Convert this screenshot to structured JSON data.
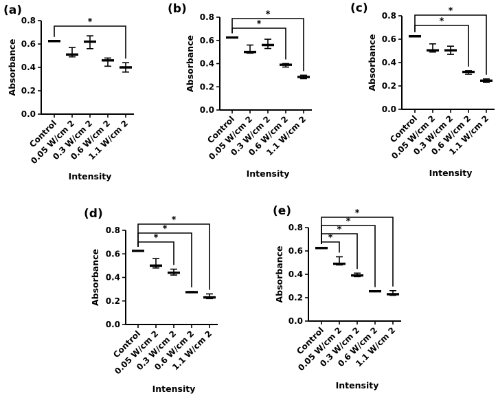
{
  "chart_data": [
    {
      "panel": "(a)",
      "type": "scatter",
      "categories": [
        "Control",
        "0.05 W/cm 2",
        "0.3 W/cm 2",
        "0.6 W/cm 2",
        "1.1 W/cm 2"
      ],
      "values": [
        0.625,
        0.51,
        0.62,
        0.46,
        0.4
      ],
      "error_low": [
        0.625,
        0.49,
        0.56,
        0.41,
        0.36
      ],
      "error_high": [
        0.625,
        0.57,
        0.67,
        0.48,
        0.44
      ],
      "ylabel": "Absorbance",
      "xlabel": "Intensity",
      "ylim": [
        0,
        0.8
      ],
      "yticks": [
        "0.0",
        "0.2",
        "0.4",
        "0.6",
        "0.8"
      ],
      "significance": [
        {
          "from": 0,
          "to": 4,
          "label": "*"
        }
      ]
    },
    {
      "panel": "(b)",
      "type": "scatter",
      "categories": [
        "Control",
        "0.05 W/cm 2",
        "0.3 W/cm 2",
        "0.6 W/cm 2",
        "1.1 W/cm 2"
      ],
      "values": [
        0.625,
        0.5,
        0.56,
        0.39,
        0.285
      ],
      "error_low": [
        0.625,
        0.49,
        0.53,
        0.37,
        0.27
      ],
      "error_high": [
        0.625,
        0.56,
        0.61,
        0.4,
        0.3
      ],
      "ylabel": "Absorbance",
      "xlabel": "Intensity",
      "ylim": [
        0,
        0.8
      ],
      "yticks": [
        "0.0",
        "0.2",
        "0.4",
        "0.6",
        "0.8"
      ],
      "significance": [
        {
          "from": 0,
          "to": 3,
          "label": "*"
        },
        {
          "from": 0,
          "to": 4,
          "label": "*"
        }
      ]
    },
    {
      "panel": "(c)",
      "type": "scatter",
      "categories": [
        "Control",
        "0.05 W/cm 2",
        "0.3 W/cm 2",
        "0.6 W/cm 2",
        "1.1 W/cm 2"
      ],
      "values": [
        0.625,
        0.505,
        0.505,
        0.32,
        0.245
      ],
      "error_low": [
        0.625,
        0.49,
        0.47,
        0.3,
        0.23
      ],
      "error_high": [
        0.625,
        0.56,
        0.54,
        0.33,
        0.26
      ],
      "ylabel": "Absorbance",
      "xlabel": "Intensity",
      "ylim": [
        0,
        0.8
      ],
      "yticks": [
        "0.0",
        "0.2",
        "0.4",
        "0.6",
        "0.8"
      ],
      "significance": [
        {
          "from": 0,
          "to": 3,
          "label": "*"
        },
        {
          "from": 0,
          "to": 4,
          "label": "*"
        }
      ]
    },
    {
      "panel": "(d)",
      "type": "scatter",
      "categories": [
        "Control",
        "0.05 W/cm 2",
        "0.3 W/cm 2",
        "0.6 W/cm 2",
        "1.1 W/cm 2"
      ],
      "values": [
        0.625,
        0.5,
        0.44,
        0.275,
        0.23
      ],
      "error_low": [
        0.625,
        0.48,
        0.42,
        0.27,
        0.22
      ],
      "error_high": [
        0.625,
        0.56,
        0.47,
        0.28,
        0.26
      ],
      "ylabel": "Absorbance",
      "xlabel": "Intensity",
      "ylim": [
        0,
        0.8
      ],
      "yticks": [
        "0.0",
        "0.2",
        "0.4",
        "0.6",
        "0.8"
      ],
      "significance": [
        {
          "from": 0,
          "to": 2,
          "label": "*"
        },
        {
          "from": 0,
          "to": 3,
          "label": "*"
        },
        {
          "from": 0,
          "to": 4,
          "label": "*"
        }
      ]
    },
    {
      "panel": "(e)",
      "type": "scatter",
      "categories": [
        "Control",
        "0.05 W/cm 2",
        "0.3 W/cm 2",
        "0.6 W/cm 2",
        "1.1 W/cm 2"
      ],
      "values": [
        0.625,
        0.49,
        0.39,
        0.255,
        0.23
      ],
      "error_low": [
        0.625,
        0.48,
        0.38,
        0.255,
        0.22
      ],
      "error_high": [
        0.625,
        0.55,
        0.41,
        0.255,
        0.26
      ],
      "ylabel": "Absorbance",
      "xlabel": "Intensity",
      "ylim": [
        0,
        0.8
      ],
      "yticks": [
        "0.0",
        "0.2",
        "0.4",
        "0.6",
        "0.8"
      ],
      "significance": [
        {
          "from": 0,
          "to": 1,
          "label": "*"
        },
        {
          "from": 0,
          "to": 2,
          "label": "*"
        },
        {
          "from": 0,
          "to": 3,
          "label": "*"
        },
        {
          "from": 0,
          "to": 4,
          "label": "*"
        }
      ]
    }
  ]
}
